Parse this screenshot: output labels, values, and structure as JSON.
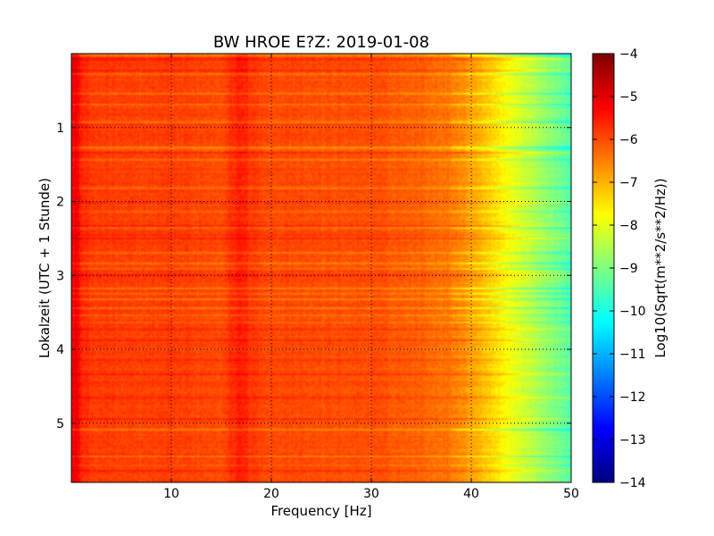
{
  "chart_data": {
    "type": "heatmap",
    "title": "BW HROE E?Z: 2019-01-08",
    "xlabel": "Frequency [Hz]",
    "ylabel": "Lokalzeit (UTC + 1 Stunde)",
    "xlim": [
      0,
      50
    ],
    "ylim": [
      5.8,
      0
    ],
    "x_ticks": [
      10,
      20,
      30,
      40,
      50
    ],
    "y_ticks": [
      1,
      2,
      3,
      4,
      5
    ],
    "grid": true,
    "colormap": "jet",
    "colorbar": {
      "label": "Log10(Sqrt(m**2/s**2/Hz))",
      "range": [
        -14,
        -4
      ],
      "ticks": [
        -4,
        -5,
        -6,
        -7,
        -8,
        -9,
        -10,
        -11,
        -12,
        -13,
        -14
      ],
      "tick_labels": [
        "−4",
        "−5",
        "−6",
        "−7",
        "−8",
        "−9",
        "−10",
        "−11",
        "−12",
        "−13",
        "−14"
      ]
    },
    "spectrum_profile": {
      "frequency_hz": [
        0,
        0.5,
        1,
        2,
        5,
        8,
        10,
        12,
        15,
        16.5,
        17,
        18,
        20,
        25,
        30,
        35,
        38,
        40,
        42,
        44,
        46,
        48,
        50
      ],
      "level": [
        -5.3,
        -5.0,
        -5.6,
        -5.8,
        -5.85,
        -5.9,
        -5.85,
        -5.9,
        -5.95,
        -5.6,
        -5.5,
        -5.8,
        -5.95,
        -6.0,
        -6.0,
        -6.2,
        -6.4,
        -6.8,
        -7.3,
        -7.9,
        -8.4,
        -8.9,
        -9.4
      ]
    }
  }
}
